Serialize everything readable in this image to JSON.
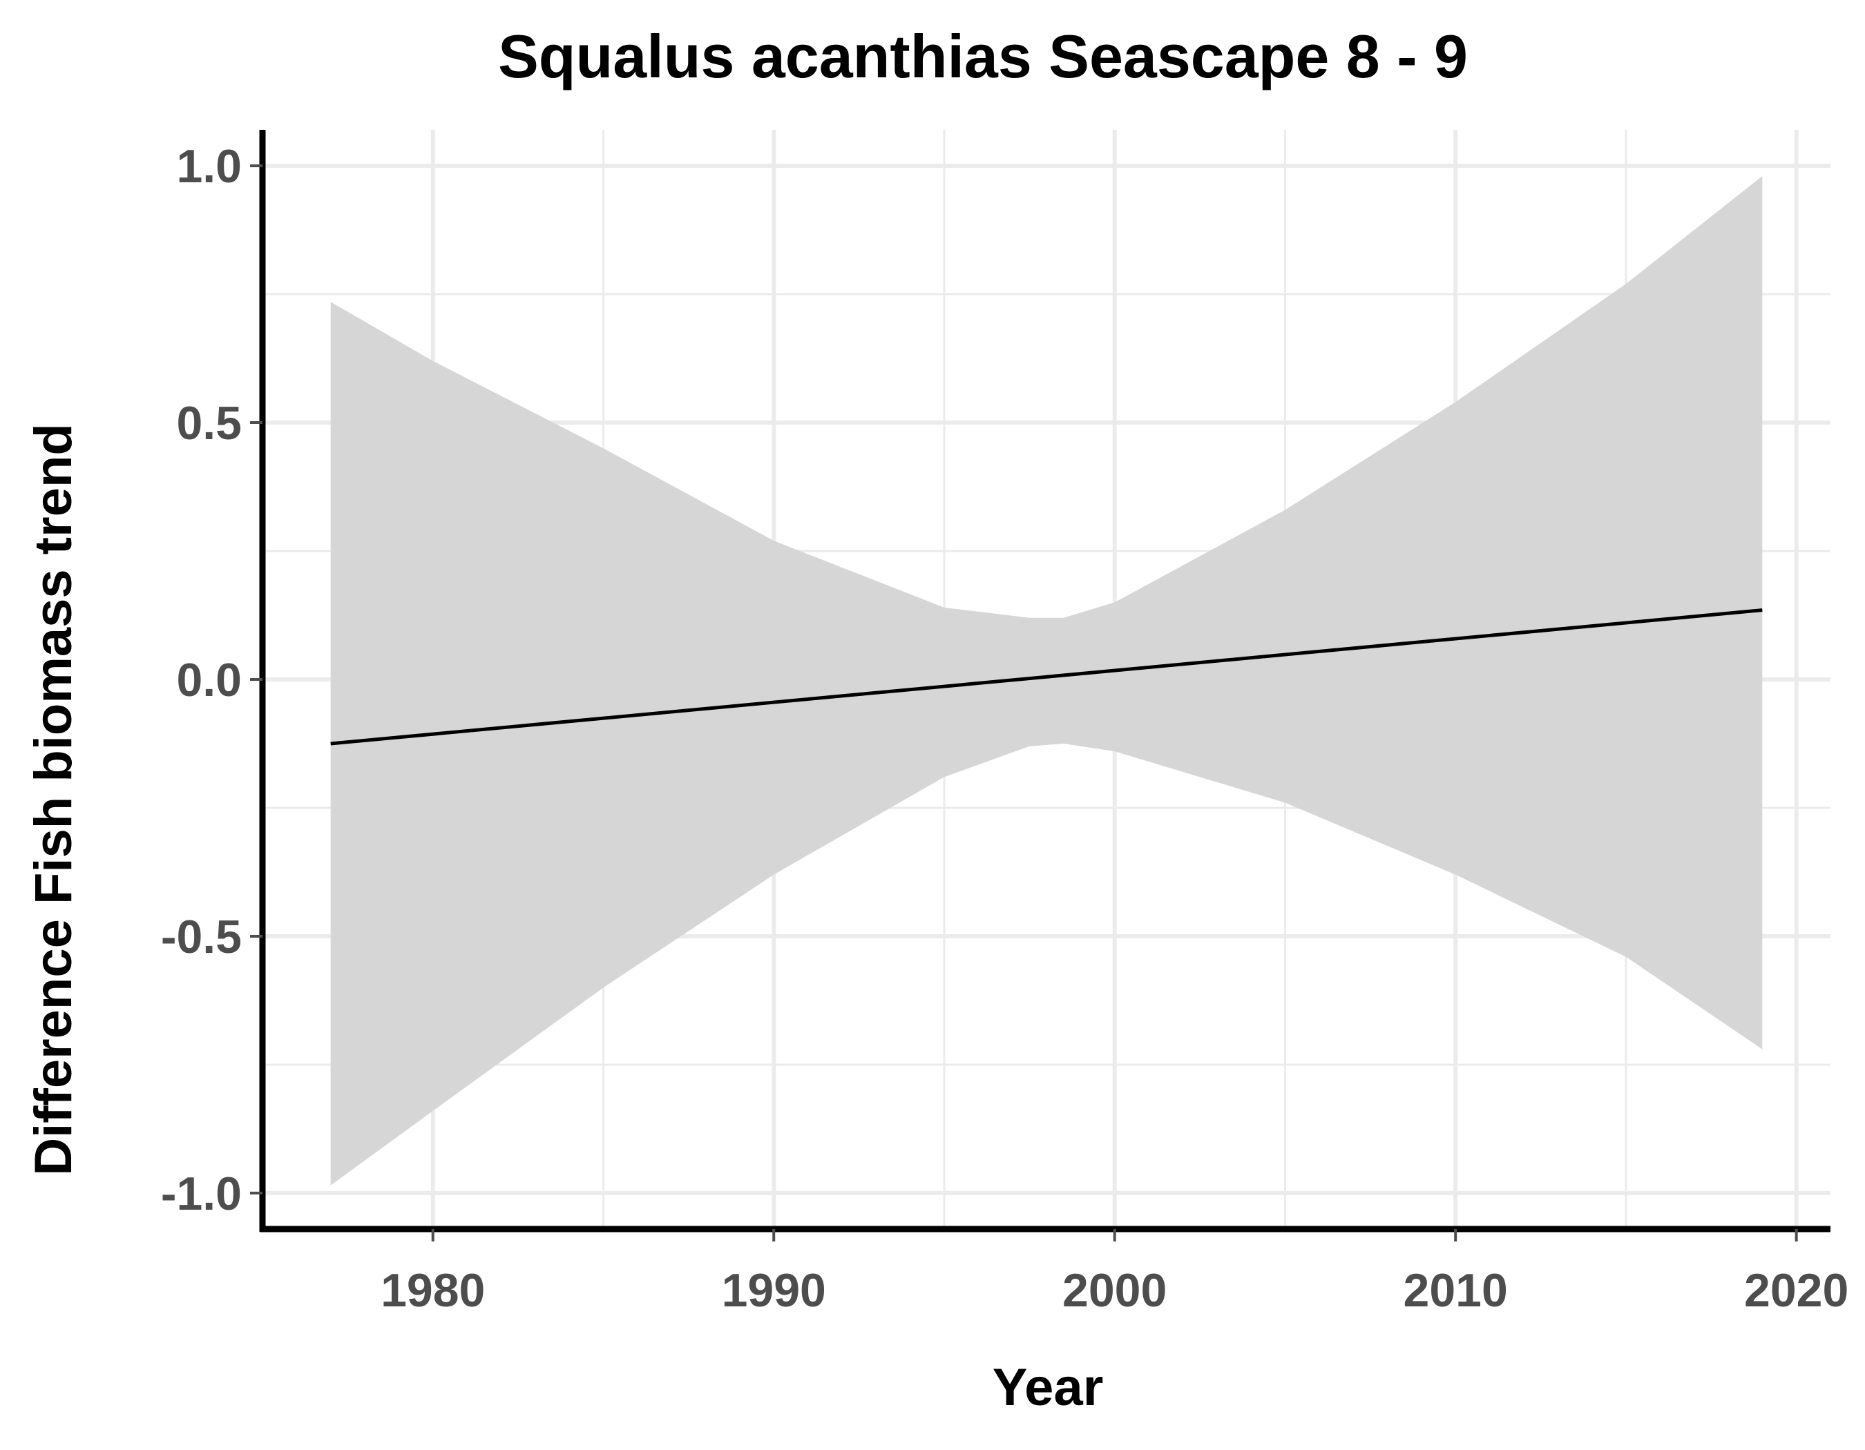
{
  "chart_data": {
    "type": "line",
    "title": "Squalus acanthias Seascape 8 - 9",
    "xlabel": "Year",
    "ylabel": "Difference Fish biomass trend",
    "xlim": [
      1975,
      2021
    ],
    "ylim": [
      -1.07,
      1.07
    ],
    "x_ticks": [
      1980,
      1990,
      2000,
      2010,
      2020
    ],
    "x_tick_labels": [
      "1980",
      "1990",
      "2000",
      "2010",
      "2020"
    ],
    "y_ticks": [
      -1.0,
      -0.5,
      0.0,
      0.5,
      1.0
    ],
    "y_tick_labels": [
      "-1.0",
      "-0.5",
      "0.0",
      "0.5",
      "1.0"
    ],
    "x_minor_ticks": [
      1985,
      1995,
      2005,
      2015
    ],
    "y_minor_ticks": [
      -0.75,
      -0.25,
      0.25,
      0.75
    ],
    "grid": true,
    "series": [
      {
        "x": [
          1977,
          2019
        ],
        "y": [
          -0.125,
          0.135
        ],
        "color": "#000000"
      }
    ],
    "confidence_band": {
      "x": [
        1977,
        1980,
        1985,
        1990,
        1995,
        1997.5,
        1998.5,
        2000,
        2005,
        2010,
        2015,
        2019
      ],
      "upper": [
        0.735,
        0.62,
        0.45,
        0.27,
        0.14,
        0.12,
        0.12,
        0.15,
        0.33,
        0.54,
        0.77,
        0.98
      ],
      "lower": [
        -0.985,
        -0.84,
        -0.6,
        -0.38,
        -0.19,
        -0.13,
        -0.125,
        -0.14,
        -0.24,
        -0.38,
        -0.54,
        -0.72
      ],
      "color": "#d6d6d6"
    },
    "colors": {
      "background": "#ffffff",
      "panel": "#ffffff",
      "grid": "#ebebeb",
      "axis": "#000000",
      "tick_label": "#4d4d4d"
    }
  }
}
